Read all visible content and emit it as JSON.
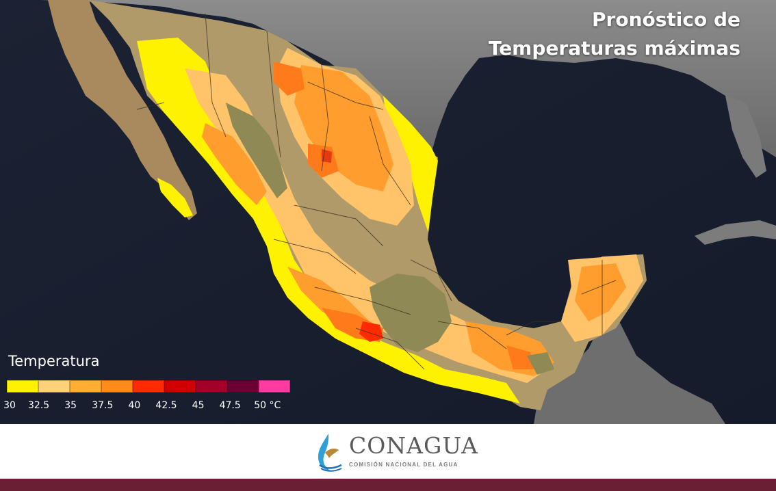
{
  "map": {
    "title_line1": "Pronóstico de",
    "title_line2": "Temperaturas máximas"
  },
  "legend": {
    "title": "Temperatura",
    "unit": "°C",
    "colors": [
      "#fff200",
      "#ffd27a",
      "#ffad33",
      "#ff8c1a",
      "#ff2a00",
      "#d10000",
      "#a3002a",
      "#6b0033",
      "#ff3aa0"
    ],
    "ticks": [
      "30",
      "32.5",
      "35",
      "37.5",
      "40",
      "42.5",
      "45",
      "47.5",
      "50 °C"
    ]
  },
  "footer": {
    "brand": "CONAGUA",
    "subtitle": "COMISIÓN NACIONAL DEL AGUA",
    "stripe_color": "#6b1f34"
  }
}
